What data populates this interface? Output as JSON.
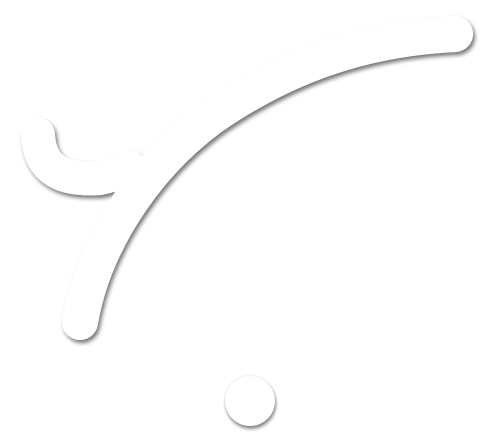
{
  "canvas": {
    "background_color": "#ffffff",
    "stroke_color": "#ffffff",
    "shadow_color": "#000000"
  },
  "shapes": {
    "stroke_glyph": "curved-brush-stroke",
    "button_icon": "circle-icon"
  }
}
